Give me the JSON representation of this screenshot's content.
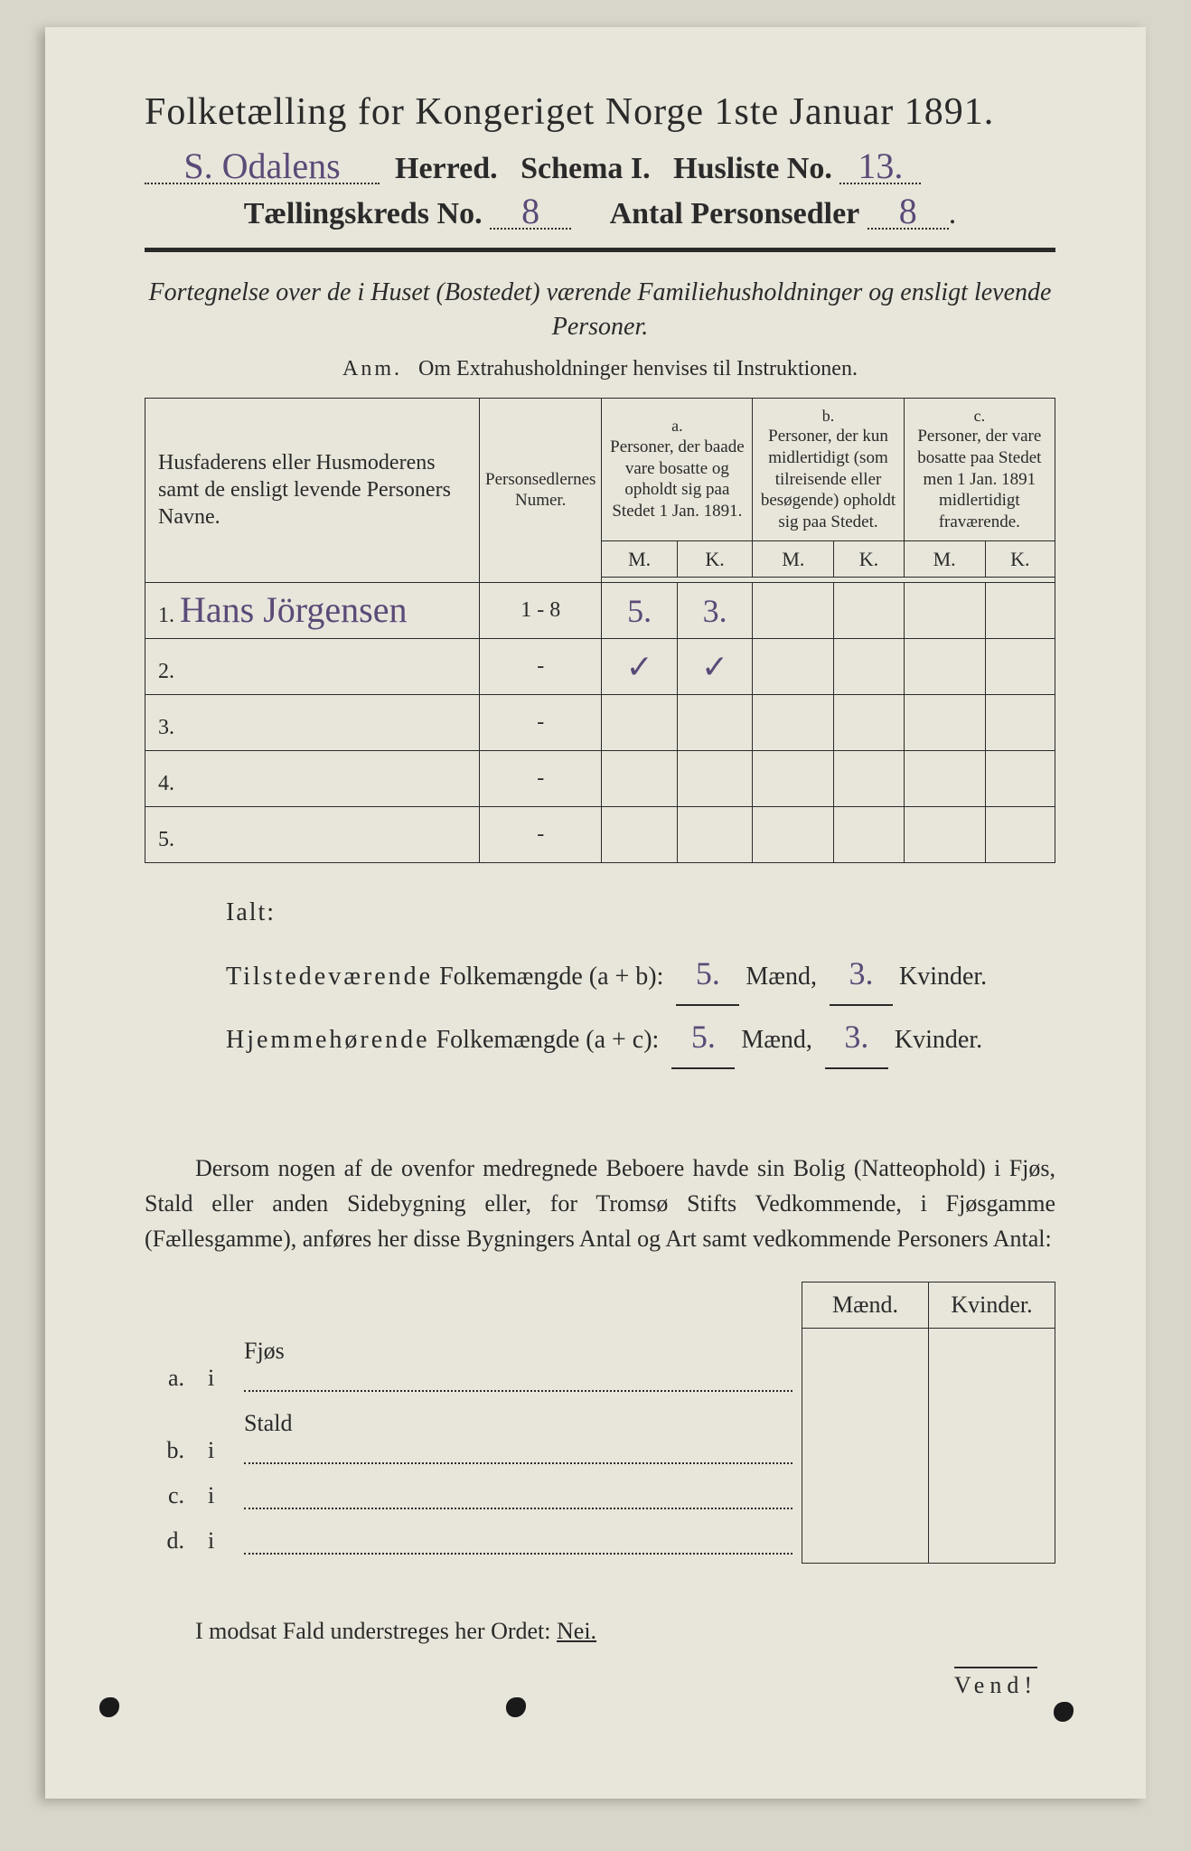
{
  "colors": {
    "page_bg": "#e8e5da",
    "outer_bg": "#d8d6cb",
    "ink": "#2a2a2a",
    "handwriting": "#5a4a78"
  },
  "title": "Folketælling for Kongeriget Norge 1ste Januar 1891.",
  "header": {
    "herred_value": "S. Odalens",
    "herred_label": "Herred.",
    "schema_label": "Schema I.",
    "husliste_label": "Husliste No.",
    "husliste_value": "13.",
    "kreds_label": "Tællingskreds No.",
    "kreds_value": "8",
    "antal_label": "Antal Personsedler",
    "antal_value": "8"
  },
  "subtitle": "Fortegnelse over de i Huset (Bostedet) værende Familiehusholdninger og ensligt levende Personer.",
  "anm_label": "Anm.",
  "anm_text": "Om Extrahusholdninger henvises til Instruktionen.",
  "table": {
    "col_name": "Husfaderens eller Husmoderens samt de ensligt levende Personers Navne.",
    "col_num": "Personsedlernes Numer.",
    "grp_a": "a.",
    "grp_a_text": "Personer, der baade vare bosatte og opholdt sig paa Stedet 1 Jan. 1891.",
    "grp_b": "b.",
    "grp_b_text": "Personer, der kun midlertidigt (som tilreisende eller besøgende) opholdt sig paa Stedet.",
    "grp_c": "c.",
    "grp_c_text": "Personer, der vare bosatte paa Stedet men 1 Jan. 1891 midlertidigt fraværende.",
    "M": "M.",
    "K": "K.",
    "rows": [
      {
        "n": "1.",
        "name": "Hans Jörgensen",
        "pnum": "1 - 8",
        "aM": "5.",
        "aK": "3.",
        "bM": "",
        "bK": "",
        "cM": "",
        "cK": ""
      },
      {
        "n": "2.",
        "name": "",
        "pnum": "-",
        "aM": "✓",
        "aK": "✓",
        "bM": "",
        "bK": "",
        "cM": "",
        "cK": ""
      },
      {
        "n": "3.",
        "name": "",
        "pnum": "-",
        "aM": "",
        "aK": "",
        "bM": "",
        "bK": "",
        "cM": "",
        "cK": ""
      },
      {
        "n": "4.",
        "name": "",
        "pnum": "-",
        "aM": "",
        "aK": "",
        "bM": "",
        "bK": "",
        "cM": "",
        "cK": ""
      },
      {
        "n": "5.",
        "name": "",
        "pnum": "-",
        "aM": "",
        "aK": "",
        "bM": "",
        "bK": "",
        "cM": "",
        "cK": ""
      }
    ]
  },
  "ialt": {
    "label": "Ialt:",
    "line1_a": "Tilstedeværende",
    "line1_b": "Folkemængde (a + b):",
    "line2_a": "Hjemmehørende",
    "line2_b": "Folkemængde (a + c):",
    "maend": "Mænd,",
    "kvinder": "Kvinder.",
    "v1m": "5.",
    "v1k": "3.",
    "v2m": "5.",
    "v2k": "3."
  },
  "para": "Dersom nogen af de ovenfor medregnede Beboere havde sin Bolig (Natteophold) i Fjøs, Stald eller anden Sidebygning eller, for Tromsø Stifts Vedkommende, i Fjøsgamme (Fællesgamme), anføres her disse Bygningers Antal og Art samt vedkommende Personers Antal:",
  "side": {
    "maend": "Mænd.",
    "kvinder": "Kvinder.",
    "rows": [
      {
        "lab": "a.",
        "i": "i",
        "kind": "Fjøs"
      },
      {
        "lab": "b.",
        "i": "i",
        "kind": "Stald"
      },
      {
        "lab": "c.",
        "i": "i",
        "kind": ""
      },
      {
        "lab": "d.",
        "i": "i",
        "kind": ""
      }
    ]
  },
  "nei_line_a": "I modsat Fald understreges her Ordet:",
  "nei": "Nei.",
  "vend": "Vend!"
}
